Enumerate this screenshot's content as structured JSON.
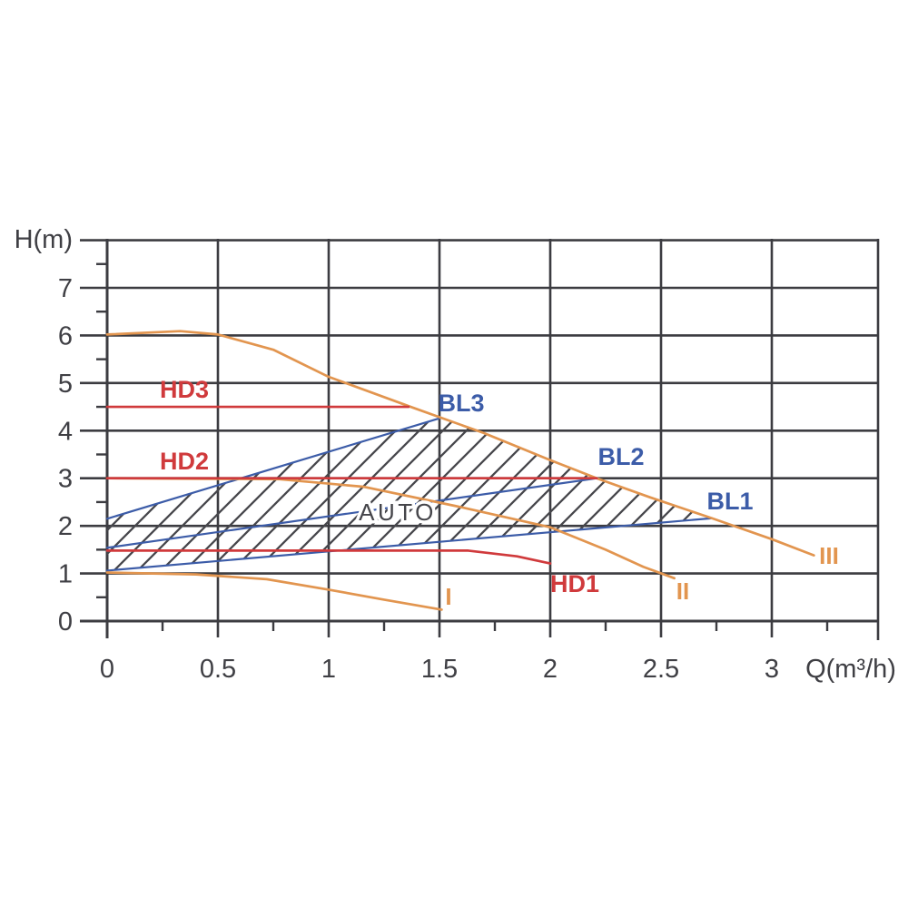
{
  "page": {
    "background": "#ffffff"
  },
  "chart_data": {
    "type": "line",
    "title": "",
    "xlabel": "Q(m³/h)",
    "ylabel": "H(m)",
    "xlim": [
      0,
      3.48
    ],
    "ylim": [
      0,
      8
    ],
    "grid": true,
    "x_major_ticks": [
      0,
      0.5,
      1,
      1.5,
      2,
      2.5,
      3
    ],
    "x_major_tick_labels": [
      "0",
      "0.5",
      "1",
      "1.5",
      "2",
      "2.5",
      "3"
    ],
    "x_minor_ticks": [
      0.25,
      0.75,
      1.25,
      1.75,
      2.25,
      2.75,
      3.25
    ],
    "y_major_ticks": [
      0,
      1,
      2,
      3,
      4,
      5,
      6,
      7,
      8
    ],
    "y_labeled_ticks": [
      0,
      1,
      2,
      3,
      4,
      5,
      6,
      7
    ],
    "y_tick_labels": [
      "0",
      "1",
      "2",
      "3",
      "4",
      "5",
      "6",
      "7"
    ],
    "y_minor_ticks": [
      0.5,
      1.5,
      2.5,
      3.5,
      4.5,
      5.5,
      6.5,
      7.5
    ],
    "colors": {
      "grid": "#3c3c41",
      "axis_text": "#3f3f44",
      "speed_curve_orange": "#e2954f",
      "constant_pressure_red": "#d03a3c",
      "proportional_pressure_blue": "#3c5ca8",
      "hatch": "#46464b",
      "auto_text": "#45454a"
    },
    "series": [
      {
        "id": "bl1",
        "label": "BL1",
        "kind": "proportional-pressure",
        "color": "#3c5ca8",
        "points": [
          [
            0,
            1.06
          ],
          [
            2.73,
            2.16
          ]
        ],
        "label_at": [
          2.81,
          2.52
        ]
      },
      {
        "id": "bl2",
        "label": "BL2",
        "kind": "proportional-pressure",
        "color": "#3c5ca8",
        "points": [
          [
            0,
            1.54
          ],
          [
            2.21,
            3.0
          ]
        ],
        "label_at": [
          2.32,
          3.45
        ]
      },
      {
        "id": "bl3",
        "label": "BL3",
        "kind": "proportional-pressure",
        "color": "#3c5ca8",
        "points": [
          [
            0,
            2.15
          ],
          [
            1.5,
            4.26
          ]
        ],
        "label_at": [
          1.6,
          4.58
        ]
      },
      {
        "id": "speed-1",
        "label": "I",
        "kind": "fixed-speed",
        "color": "#e2954f",
        "points": [
          [
            0,
            1.02
          ],
          [
            0.4,
            0.98
          ],
          [
            0.72,
            0.88
          ],
          [
            1.0,
            0.66
          ],
          [
            1.25,
            0.45
          ],
          [
            1.51,
            0.24
          ]
        ],
        "label_at": [
          1.54,
          0.52
        ]
      },
      {
        "id": "speed-2",
        "label": "II",
        "kind": "fixed-speed",
        "color": "#e2954f",
        "points": [
          [
            0,
            3.0
          ],
          [
            0.78,
            2.98
          ],
          [
            1.16,
            2.82
          ],
          [
            1.57,
            2.42
          ],
          [
            2.0,
            1.97
          ],
          [
            2.25,
            1.5
          ],
          [
            2.42,
            1.14
          ],
          [
            2.56,
            0.9
          ]
        ],
        "label_at": [
          2.6,
          0.63
        ]
      },
      {
        "id": "speed-3",
        "label": "III",
        "kind": "fixed-speed",
        "color": "#e2954f",
        "points": [
          [
            0,
            6.02
          ],
          [
            0.33,
            6.09
          ],
          [
            0.5,
            6.02
          ],
          [
            0.75,
            5.7
          ],
          [
            1.0,
            5.13
          ],
          [
            1.37,
            4.5
          ],
          [
            1.7,
            3.95
          ],
          [
            2.0,
            3.38
          ],
          [
            2.21,
            3.0
          ],
          [
            2.45,
            2.6
          ],
          [
            2.73,
            2.16
          ],
          [
            3.0,
            1.72
          ],
          [
            3.19,
            1.38
          ]
        ],
        "label_at": [
          3.26,
          1.37
        ]
      },
      {
        "id": "hd1",
        "label": "HD1",
        "kind": "constant-pressure",
        "color": "#d03a3c",
        "points": [
          [
            0,
            1.48
          ],
          [
            1.63,
            1.48
          ],
          [
            1.85,
            1.36
          ],
          [
            2.0,
            1.21
          ]
        ],
        "label_at": [
          2.11,
          0.78
        ]
      },
      {
        "id": "hd2",
        "label": "HD2",
        "kind": "constant-pressure",
        "color": "#d03a3c",
        "points": [
          [
            0,
            3.0
          ],
          [
            2.21,
            3.0
          ]
        ],
        "label_at": [
          0.35,
          3.36
        ]
      },
      {
        "id": "hd3",
        "label": "HD3",
        "kind": "constant-pressure",
        "color": "#d03a3c",
        "points": [
          [
            0,
            4.5
          ],
          [
            1.36,
            4.5
          ]
        ],
        "label_at": [
          0.35,
          4.86
        ]
      }
    ],
    "auto_region": {
      "label": "AUTO",
      "label_at": [
        1.31,
        2.29
      ],
      "polygon": [
        [
          0,
          1.06
        ],
        [
          0,
          2.15
        ],
        [
          1.5,
          4.26
        ],
        [
          1.7,
          3.95
        ],
        [
          2.0,
          3.38
        ],
        [
          2.21,
          3.0
        ],
        [
          2.45,
          2.6
        ],
        [
          2.73,
          2.16
        ]
      ]
    }
  }
}
